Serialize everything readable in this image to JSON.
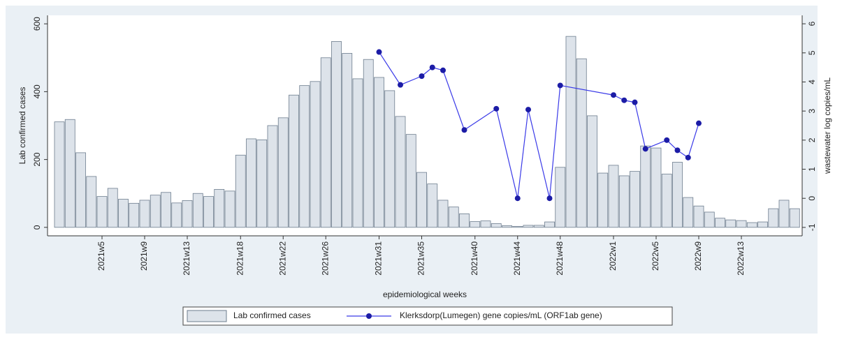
{
  "chart_data": {
    "type": "bar",
    "xlabel": "epidemiological weeks",
    "ylabel": "Lab confirmed cases",
    "y2label": "wastewater log copies/mL",
    "categories": [
      null,
      null,
      null,
      null,
      "2021w5",
      null,
      null,
      null,
      "2021w9",
      null,
      null,
      null,
      "2021w13",
      null,
      null,
      null,
      null,
      "2021w18",
      null,
      null,
      null,
      "2021w22",
      null,
      null,
      null,
      "2021w26",
      null,
      null,
      null,
      null,
      "2021w31",
      null,
      null,
      null,
      "2021w35",
      null,
      null,
      null,
      null,
      "2021w40",
      null,
      null,
      null,
      "2021w44",
      null,
      null,
      null,
      "2021w48",
      null,
      null,
      null,
      null,
      "2022w1",
      null,
      null,
      null,
      "2022w5",
      null,
      null,
      null,
      "2022w9",
      null,
      null,
      null,
      "2022w13",
      null,
      null,
      null,
      null,
      null
    ],
    "series": [
      {
        "name": "Lab confirmed cases",
        "type": "bar",
        "color": "#dde3ea",
        "values": [
          311,
          318,
          220,
          150,
          91,
          115,
          83,
          71,
          80,
          95,
          103,
          72,
          79,
          100,
          91,
          112,
          107,
          213,
          261,
          258,
          300,
          323,
          390,
          418,
          430,
          500,
          548,
          513,
          438,
          495,
          442,
          403,
          327,
          274,
          162,
          128,
          80,
          60,
          40,
          17,
          19,
          11,
          5,
          3,
          6,
          6,
          16,
          177,
          563,
          497,
          329,
          160,
          183,
          152,
          165,
          240,
          234,
          157,
          192,
          88,
          63,
          45,
          27,
          22,
          20,
          14,
          16,
          55,
          80,
          55
        ]
      },
      {
        "name": "Klerksdorp(Lumegen) gene copies/mL (ORF1ab gene)",
        "type": "line",
        "axis": "y2",
        "color": "#3a3ae8",
        "values": [
          null,
          null,
          null,
          null,
          null,
          null,
          null,
          null,
          null,
          null,
          null,
          null,
          null,
          null,
          null,
          null,
          null,
          null,
          null,
          null,
          null,
          null,
          null,
          null,
          null,
          null,
          null,
          null,
          null,
          null,
          5.03,
          null,
          3.9,
          null,
          4.2,
          4.5,
          4.4,
          null,
          2.35,
          null,
          null,
          3.08,
          null,
          0,
          3.05,
          null,
          0,
          3.88,
          null,
          null,
          null,
          null,
          3.55,
          3.37,
          3.3,
          1.7,
          null,
          2.0,
          1.65,
          1.4,
          2.58,
          null,
          null,
          null,
          null,
          null,
          null,
          null,
          null,
          null
        ]
      }
    ],
    "ylim": [
      -25,
      625
    ],
    "yticks": [
      0,
      200,
      400,
      600
    ],
    "y2lim": [
      -1.29,
      6.29
    ],
    "y2ticks": [
      -1,
      0,
      1,
      2,
      3,
      4,
      5,
      6
    ],
    "grid": false
  }
}
